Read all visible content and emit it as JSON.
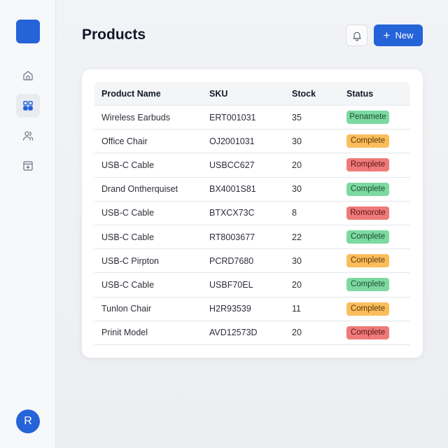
{
  "sidebar": {
    "logo": "app-logo",
    "items": [
      {
        "name": "home",
        "icon": "home-icon",
        "active": false
      },
      {
        "name": "products",
        "icon": "grid-icon",
        "active": true
      },
      {
        "name": "users",
        "icon": "users-icon",
        "active": false
      },
      {
        "name": "archive",
        "icon": "archive-download-icon",
        "active": false
      }
    ],
    "avatar_initial": "R"
  },
  "header": {
    "title": "Products",
    "bell_icon": "bell-icon",
    "new_button": {
      "icon": "plus",
      "label": "New"
    }
  },
  "colors": {
    "accent": "#2563d8",
    "status_green": "#7cd9a0",
    "status_orange": "#fbbd5c",
    "status_red": "#ef7a7a"
  },
  "table": {
    "columns": [
      "Product Name",
      "SKU",
      "Stock",
      "Status"
    ],
    "rows": [
      {
        "name": "Wireless Earbuds",
        "sku": "ERT001031",
        "stock": "35",
        "status": "Penamete",
        "color": "green"
      },
      {
        "name": "Office Chair",
        "sku": "OJ2001031",
        "stock": "30",
        "status": "Complete",
        "color": "orange"
      },
      {
        "name": "USB-C Cable",
        "sku": "USBCC627",
        "stock": "20",
        "status": "Romplete",
        "color": "red"
      },
      {
        "name": "Drand Ontherquiset",
        "sku": "BX4001S81",
        "stock": "30",
        "status": "Complete",
        "color": "green"
      },
      {
        "name": "USB-C Cable",
        "sku": "BTXCX73C",
        "stock": "8",
        "status": "Romorote",
        "color": "red"
      },
      {
        "name": "USB-C Cable",
        "sku": "RT8003677",
        "stock": "22",
        "status": "Complete",
        "color": "green"
      },
      {
        "name": "USB-C Pirpton",
        "sku": "PCRD7680",
        "stock": "30",
        "status": "Complete",
        "color": "orange"
      },
      {
        "name": "USB-C Cable",
        "sku": "USBF70EL",
        "stock": "20",
        "status": "Complete",
        "color": "green"
      },
      {
        "name": "Tunlon Chair",
        "sku": "H2R93539",
        "stock": "11",
        "status": "Complete",
        "color": "orange"
      },
      {
        "name": "Prinit Model",
        "sku": "AVD12573D",
        "stock": "20",
        "status": "Complete",
        "color": "red"
      }
    ]
  }
}
